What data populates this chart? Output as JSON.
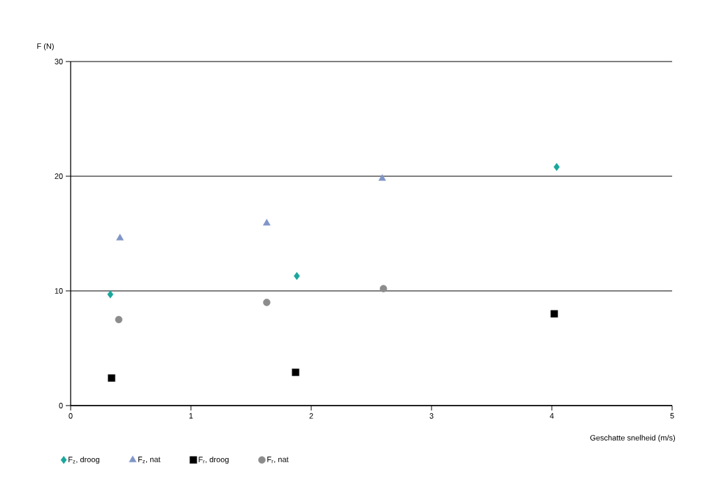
{
  "chart_data": {
    "type": "scatter",
    "xlabel": "Geschatte snelheid (m/s)",
    "ylabel": "F (N)",
    "xlim": [
      0,
      5
    ],
    "ylim": [
      0,
      30
    ],
    "xticks": [
      0,
      1,
      2,
      3,
      4,
      5
    ],
    "yticks": [
      0,
      10,
      20,
      30
    ],
    "grid": "y",
    "legend": "bottom",
    "series": [
      {
        "name": "F$_{z}$, droog",
        "color": "#1aa79c",
        "marker": "diamond",
        "x": [
          0.33,
          1.88,
          4.04
        ],
        "values": [
          9.7,
          11.3,
          20.8
        ]
      },
      {
        "name": "F$_{z}$, nat",
        "color": "#8096c8",
        "marker": "triangle",
        "x": [
          0.41,
          1.63,
          2.59
        ],
        "values": [
          14.6,
          15.9,
          19.8
        ]
      },
      {
        "name": "F$_{r}$, droog",
        "color": "#000000",
        "marker": "square",
        "x": [
          0.34,
          1.87,
          4.02
        ],
        "values": [
          2.4,
          2.9,
          8.0
        ]
      },
      {
        "name": "F$_{r}$, nat",
        "color": "#8c8c8c",
        "marker": "circle",
        "x": [
          0.4,
          1.63,
          2.6
        ],
        "values": [
          7.5,
          9.0,
          10.2
        ]
      }
    ]
  }
}
